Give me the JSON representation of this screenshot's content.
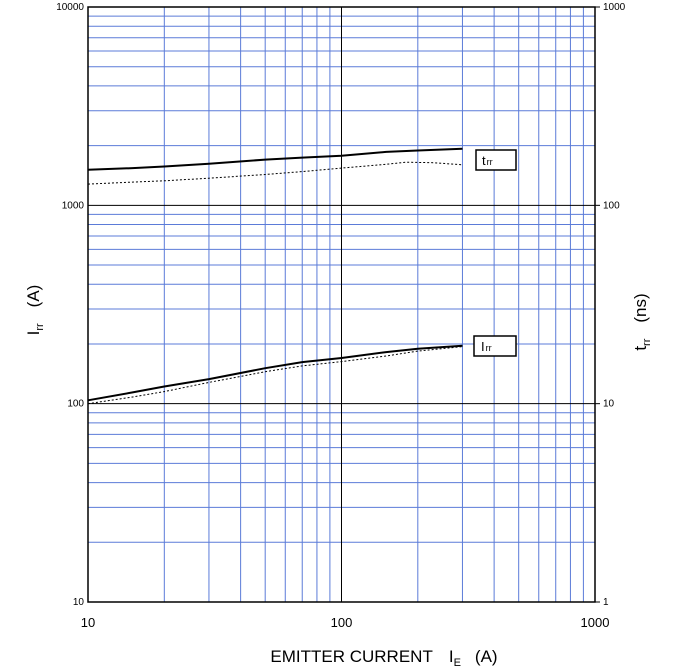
{
  "chart_data": {
    "type": "line",
    "title": "",
    "x_scale": "log",
    "xlim": [
      10,
      1000
    ],
    "x_ticks": [
      "10",
      "100",
      "1000"
    ],
    "xlabel": "EMITTER CURRENT",
    "xlabel_symbol": "I",
    "xlabel_symbol_sub": "E",
    "xlabel_unit": "(A)",
    "y_scale": "log",
    "ylim": [
      10,
      10000
    ],
    "y_ticks": [
      "10",
      "100",
      "1000",
      "10000"
    ],
    "ylabel_symbol": "I",
    "ylabel_symbol_sub": "rr",
    "ylabel_unit": "(A)",
    "y2_scale": "log",
    "y2lim": [
      1,
      1000
    ],
    "y2_ticks": [
      "1",
      "10",
      "100",
      "1000"
    ],
    "y2label_symbol": "t",
    "y2label_symbol_sub": "rr",
    "y2label_unit": "(ns)",
    "grid": true,
    "grid_color": "#5b7bd8",
    "series": [
      {
        "name": "t",
        "name_sub": "rr",
        "axis": "right",
        "style": "solid",
        "x": [
          10,
          15,
          20,
          30,
          50,
          70,
          100,
          150,
          200,
          300
        ],
        "y": [
          151,
          154,
          157,
          162,
          170,
          174,
          178,
          186,
          189,
          193
        ]
      },
      {
        "name": "",
        "axis": "right",
        "style": "dotted",
        "x": [
          10,
          15,
          20,
          30,
          50,
          70,
          100,
          150,
          180,
          230,
          300
        ],
        "y": [
          128,
          131,
          133,
          137,
          143,
          148,
          154,
          161,
          165,
          164,
          160
        ]
      },
      {
        "name": "I",
        "name_sub": "rr",
        "axis": "left",
        "style": "solid",
        "x": [
          10,
          15,
          20,
          30,
          50,
          70,
          100,
          150,
          200,
          300
        ],
        "y": [
          104,
          114,
          122,
          133,
          151,
          162,
          170,
          182,
          189,
          196
        ]
      },
      {
        "name": "",
        "axis": "left",
        "style": "dotted",
        "x": [
          10,
          15,
          20,
          30,
          50,
          70,
          100,
          150,
          200,
          300
        ],
        "y": [
          100,
          108,
          115,
          128,
          145,
          155,
          163,
          174,
          184,
          194
        ]
      }
    ]
  }
}
